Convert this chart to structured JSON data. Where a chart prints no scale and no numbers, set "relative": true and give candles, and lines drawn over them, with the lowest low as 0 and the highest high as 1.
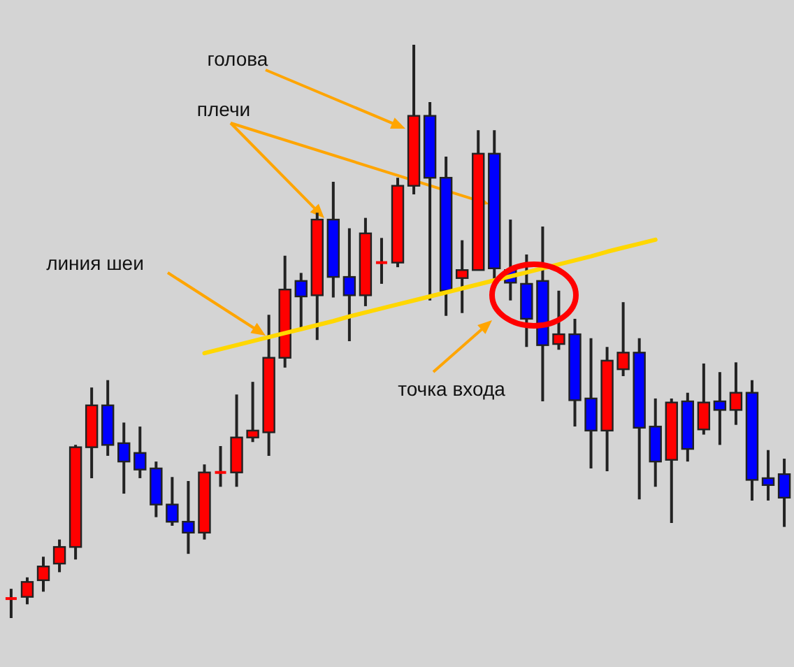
{
  "chart_data": {
    "type": "candlestick",
    "relative": true,
    "categories": [
      null,
      null,
      null,
      null,
      null,
      null,
      null,
      null,
      null,
      null,
      null,
      null,
      null,
      null,
      null,
      null,
      null,
      null,
      null,
      null,
      null,
      null,
      null,
      null,
      null,
      null,
      null,
      null,
      null,
      null,
      null,
      null,
      null,
      null,
      null,
      null,
      null,
      null,
      null,
      null,
      null,
      null,
      null,
      null,
      null,
      null,
      null,
      null,
      null
    ],
    "ohlc": [
      [
        0.032,
        0.051,
        0,
        0.034
      ],
      [
        0.037,
        0.071,
        0.024,
        0.063
      ],
      [
        0.066,
        0.107,
        0.046,
        0.09
      ],
      [
        0.095,
        0.137,
        0.08,
        0.124
      ],
      [
        0.124,
        0.302,
        0.102,
        0.298
      ],
      [
        0.298,
        0.402,
        0.244,
        0.371
      ],
      [
        0.371,
        0.415,
        0.283,
        0.302
      ],
      [
        0.305,
        0.341,
        0.217,
        0.273
      ],
      [
        0.288,
        0.334,
        0.244,
        0.259
      ],
      [
        0.261,
        0.273,
        0.176,
        0.198
      ],
      [
        0.198,
        0.246,
        0.161,
        0.168
      ],
      [
        0.168,
        0.239,
        0.112,
        0.149
      ],
      [
        0.149,
        0.268,
        0.137,
        0.254
      ],
      [
        0.254,
        0.3,
        0.229,
        0.254
      ],
      [
        0.254,
        0.39,
        0.229,
        0.315
      ],
      [
        0.315,
        0.412,
        0.307,
        0.327
      ],
      [
        0.324,
        0.529,
        0.283,
        0.454
      ],
      [
        0.454,
        0.632,
        0.437,
        0.573
      ],
      [
        0.588,
        0.602,
        0.505,
        0.561
      ],
      [
        0.563,
        0.707,
        0.485,
        0.695
      ],
      [
        0.695,
        0.761,
        0.559,
        0.595
      ],
      [
        0.595,
        0.68,
        0.483,
        0.563
      ],
      [
        0.563,
        0.698,
        0.544,
        0.671
      ],
      [
        0.62,
        0.663,
        0.583,
        0.62
      ],
      [
        0.62,
        0.768,
        0.612,
        0.754
      ],
      [
        0.754,
        1,
        0.739,
        0.876
      ],
      [
        0.876,
        0.9,
        0.554,
        0.768
      ],
      [
        0.768,
        0.805,
        0.527,
        0.571
      ],
      [
        0.593,
        0.659,
        0.532,
        0.607
      ],
      [
        0.607,
        0.851,
        0.607,
        0.81
      ],
      [
        0.81,
        0.851,
        0.59,
        0.61
      ],
      [
        0.607,
        0.695,
        0.554,
        0.585
      ],
      [
        0.583,
        0.634,
        0.473,
        0.522
      ],
      [
        0.588,
        0.683,
        0.378,
        0.476
      ],
      [
        0.478,
        0.571,
        0.468,
        0.495
      ],
      [
        0.495,
        0.522,
        0.334,
        0.38
      ],
      [
        0.383,
        0.488,
        0.261,
        0.327
      ],
      [
        0.327,
        0.473,
        0.256,
        0.449
      ],
      [
        0.434,
        0.551,
        0.422,
        0.463
      ],
      [
        0.463,
        0.488,
        0.207,
        0.332
      ],
      [
        0.334,
        0.383,
        0.229,
        0.273
      ],
      [
        0.276,
        0.383,
        0.166,
        0.376
      ],
      [
        0.378,
        0.393,
        0.273,
        0.295
      ],
      [
        0.329,
        0.444,
        0.32,
        0.376
      ],
      [
        0.378,
        0.429,
        0.302,
        0.363
      ],
      [
        0.363,
        0.446,
        0.337,
        0.393
      ],
      [
        0.393,
        0.415,
        0.205,
        0.241
      ],
      [
        0.244,
        0.293,
        0.205,
        0.232
      ],
      [
        0.251,
        0.278,
        0.159,
        0.21
      ]
    ],
    "colors": [
      "#ff0000",
      "#ff0000",
      "#ff0000",
      "#ff0000",
      "#ff0000",
      "#ff0000",
      "#0000ff",
      "#0000ff",
      "#0000ff",
      "#0000ff",
      "#0000ff",
      "#0000ff",
      "#ff0000",
      "#ff0000",
      "#ff0000",
      "#ff0000",
      "#ff0000",
      "#ff0000",
      "#0000ff",
      "#ff0000",
      "#0000ff",
      "#0000ff",
      "#ff0000",
      "#ff0000",
      "#ff0000",
      "#ff0000",
      "#0000ff",
      "#0000ff",
      "#ff0000",
      "#ff0000",
      "#0000ff",
      "#0000ff",
      "#0000ff",
      "#0000ff",
      "#ff0000",
      "#0000ff",
      "#0000ff",
      "#ff0000",
      "#ff0000",
      "#0000ff",
      "#0000ff",
      "#ff0000",
      "#0000ff",
      "#ff0000",
      "#0000ff",
      "#ff0000",
      "#0000ff",
      "#0000ff",
      "#0000ff"
    ],
    "series": [
      {
        "type": "line",
        "color": "#ffd700",
        "values": [
          null,
          null,
          null,
          null,
          null,
          null,
          null,
          null,
          null,
          null,
          null,
          null,
          0.462,
          0.469,
          0.476,
          0.483,
          0.49,
          0.497,
          0.504,
          0.511,
          0.518,
          0.526,
          0.533,
          0.54,
          0.547,
          0.554,
          0.561,
          0.568,
          0.575,
          0.582,
          0.589,
          0.596,
          0.603,
          0.61,
          0.617,
          0.624,
          0.631,
          0.639,
          0.646,
          0.653,
          0.66,
          null,
          null,
          null,
          null,
          null,
          null,
          null,
          null
        ]
      }
    ],
    "annotations": [
      "голова",
      "плечи",
      "линия шеи",
      "точка входа"
    ]
  }
}
